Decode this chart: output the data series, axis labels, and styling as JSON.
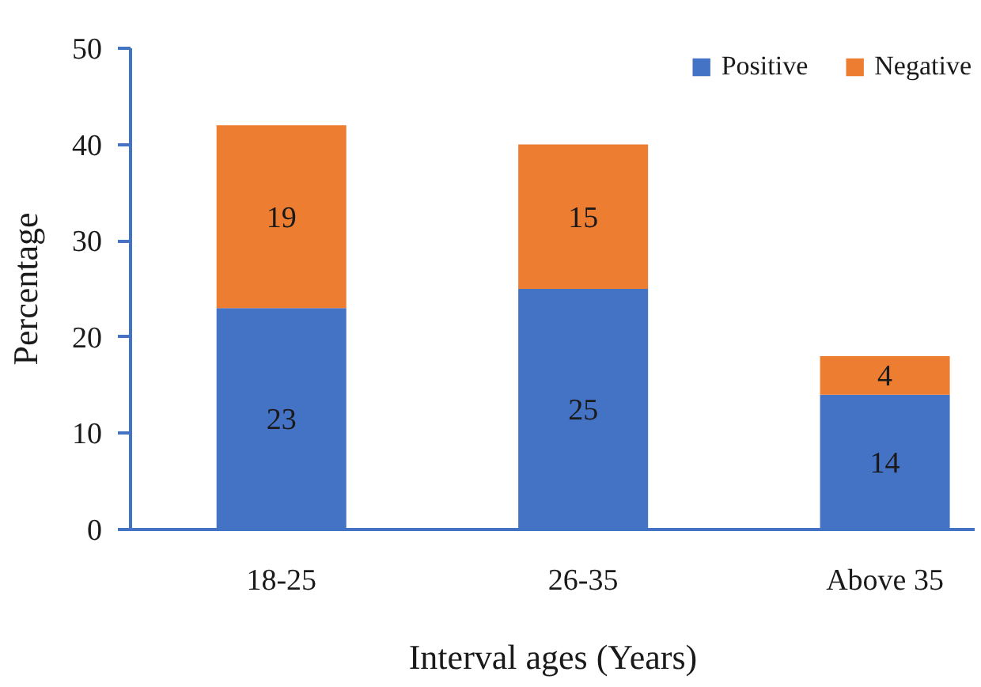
{
  "chart_data": {
    "type": "bar",
    "stacked": true,
    "categories": [
      "18-25",
      "26-35",
      "Above 35"
    ],
    "series": [
      {
        "name": "Positive",
        "color": "#4472c4",
        "values": [
          23,
          25,
          14
        ]
      },
      {
        "name": "Negative",
        "color": "#ed7d31",
        "values": [
          19,
          15,
          4
        ]
      }
    ],
    "xlabel": "Interval ages (Years)",
    "ylabel": "Percentage",
    "ylim": [
      0,
      50
    ],
    "yticks": [
      0,
      10,
      20,
      30,
      40,
      50
    ],
    "data_labels": true,
    "legend": "top right",
    "grid": false
  }
}
